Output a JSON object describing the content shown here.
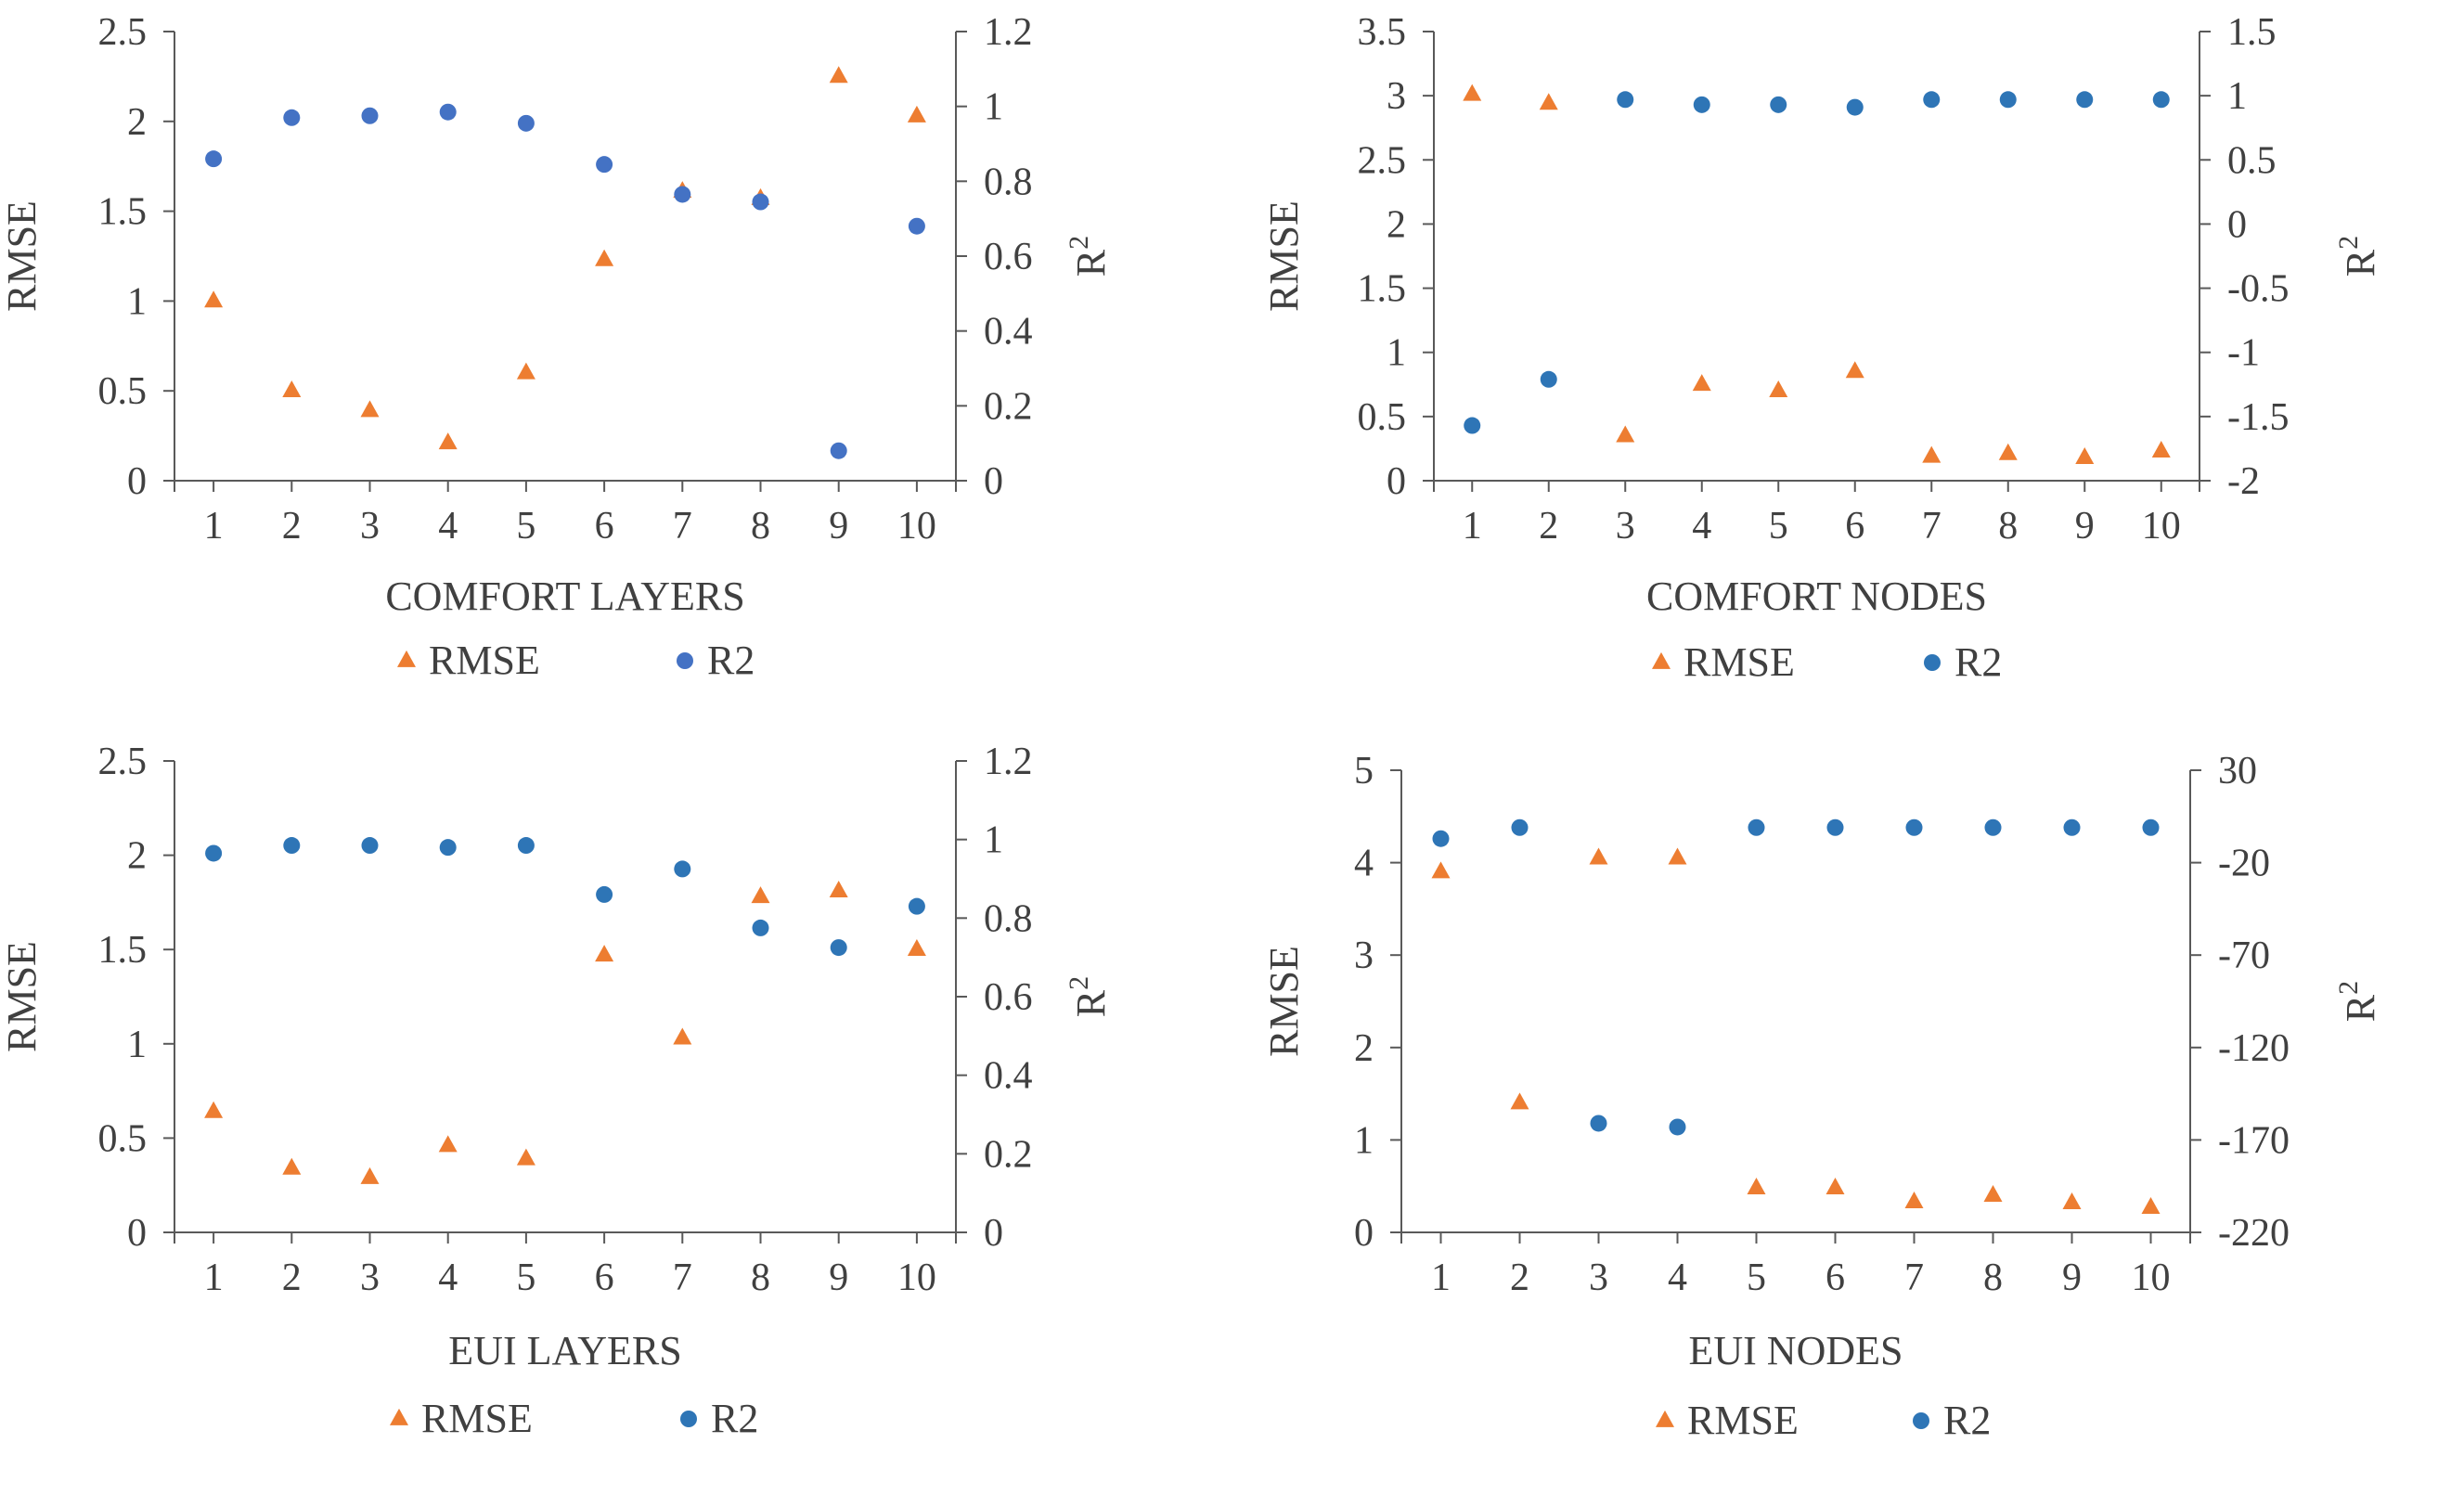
{
  "colors": {
    "rmse": "#ed7d31",
    "r2": "#2e75b6",
    "r2_alt": "#4472c4",
    "axis": "#595959",
    "text": "#404040"
  },
  "chart_data": [
    {
      "type": "scatter",
      "title": "",
      "xlabel": "COMFORT  LAYERS",
      "ylabel": "RMSE",
      "y2label": "R",
      "y2label_sup": "2",
      "x": [
        "1",
        "2",
        "3",
        "4",
        "5",
        "6",
        "7",
        "8",
        "9",
        "10"
      ],
      "xlim": [
        0.5,
        10.5
      ],
      "ylim": [
        0,
        2.5
      ],
      "yticks": [
        "0",
        "0.5",
        "1",
        "1.5",
        "2",
        "2.5"
      ],
      "y2lim": [
        0,
        1.2
      ],
      "y2ticks": [
        "0",
        "0.2",
        "0.4",
        "0.6",
        "0.8",
        "1",
        "1.2"
      ],
      "legend": [
        "RMSE",
        "R2"
      ],
      "r2_color": "#4472c4",
      "series": [
        {
          "name": "RMSE",
          "axis": "left",
          "marker": "triangle",
          "values": [
            1.0,
            0.5,
            0.39,
            0.21,
            0.6,
            1.23,
            1.61,
            1.57,
            2.25,
            2.03
          ]
        },
        {
          "name": "R2",
          "axis": "right",
          "marker": "circle",
          "values": [
            0.86,
            0.97,
            0.975,
            0.985,
            0.955,
            0.845,
            0.765,
            0.745,
            0.08,
            0.68
          ]
        }
      ]
    },
    {
      "type": "scatter",
      "title": "",
      "xlabel": "COMFORT NODES",
      "ylabel": "RMSE",
      "y2label": "R",
      "y2label_sup": "2",
      "x": [
        "1",
        "2",
        "3",
        "4",
        "5",
        "6",
        "7",
        "8",
        "9",
        "10"
      ],
      "xlim": [
        0.5,
        10.5
      ],
      "ylim": [
        0,
        3.5
      ],
      "yticks": [
        "0",
        "0.5",
        "1",
        "1.5",
        "2",
        "2.5",
        "3",
        "3.5"
      ],
      "y2lim": [
        -2,
        1.5
      ],
      "y2ticks": [
        "-2",
        "-1.5",
        "-1",
        "-0.5",
        "0",
        "0.5",
        "1",
        "1.5"
      ],
      "legend": [
        "RMSE",
        "R2"
      ],
      "r2_color": "#2e75b6",
      "series": [
        {
          "name": "RMSE",
          "axis": "left",
          "marker": "triangle",
          "values": [
            3.01,
            2.94,
            0.35,
            0.75,
            0.7,
            0.85,
            0.19,
            0.21,
            0.18,
            0.23
          ]
        },
        {
          "name": "R2",
          "axis": "right",
          "marker": "circle",
          "values": [
            -1.57,
            -1.21,
            0.97,
            0.93,
            0.93,
            0.91,
            0.97,
            0.97,
            0.97,
            0.97
          ]
        }
      ]
    },
    {
      "type": "scatter",
      "title": "",
      "xlabel": "EUI LAYERS",
      "ylabel": "RMSE",
      "y2label": "R",
      "y2label_sup": "2",
      "x": [
        "1",
        "2",
        "3",
        "4",
        "5",
        "6",
        "7",
        "8",
        "9",
        "10"
      ],
      "xlim": [
        0.5,
        10.5
      ],
      "ylim": [
        0,
        2.5
      ],
      "yticks": [
        "0",
        "0.5",
        "1",
        "1.5",
        "2",
        "2.5"
      ],
      "y2lim": [
        0,
        1.2
      ],
      "y2ticks": [
        "0",
        "0.2",
        "0.4",
        "0.6",
        "0.8",
        "1",
        "1.2"
      ],
      "legend": [
        "RMSE",
        "R2"
      ],
      "r2_color": "#2e75b6",
      "series": [
        {
          "name": "RMSE",
          "axis": "left",
          "marker": "triangle",
          "values": [
            0.64,
            0.34,
            0.29,
            0.46,
            0.39,
            1.47,
            1.03,
            1.78,
            1.81,
            1.5
          ]
        },
        {
          "name": "R2",
          "axis": "right",
          "marker": "circle",
          "values": [
            0.965,
            0.985,
            0.985,
            0.98,
            0.985,
            0.86,
            0.925,
            0.775,
            0.725,
            0.83
          ]
        }
      ]
    },
    {
      "type": "scatter",
      "title": "",
      "xlabel": "EUI NODES",
      "ylabel": "RMSE",
      "y2label": "R",
      "y2label_sup": "2",
      "x": [
        "1",
        "2",
        "3",
        "4",
        "5",
        "6",
        "7",
        "8",
        "9",
        "10"
      ],
      "xlim": [
        0.5,
        10.5
      ],
      "ylim": [
        0,
        5
      ],
      "yticks": [
        "0",
        "1",
        "2",
        "3",
        "4",
        "5"
      ],
      "y2lim": [
        -220,
        30
      ],
      "y2ticks": [
        "-220",
        "-170",
        "-120",
        "-70",
        "-20",
        "30"
      ],
      "legend": [
        "RMSE",
        "R2"
      ],
      "r2_color": "#2e75b6",
      "series": [
        {
          "name": "RMSE",
          "axis": "left",
          "marker": "triangle",
          "values": [
            3.9,
            1.4,
            4.05,
            4.05,
            0.48,
            0.48,
            0.33,
            0.4,
            0.32,
            0.27
          ]
        },
        {
          "name": "R2",
          "axis": "right",
          "marker": "circle",
          "values": [
            -7,
            -1,
            -161,
            -163,
            -1,
            -1,
            -1,
            -1,
            -1,
            -1
          ]
        }
      ]
    }
  ]
}
